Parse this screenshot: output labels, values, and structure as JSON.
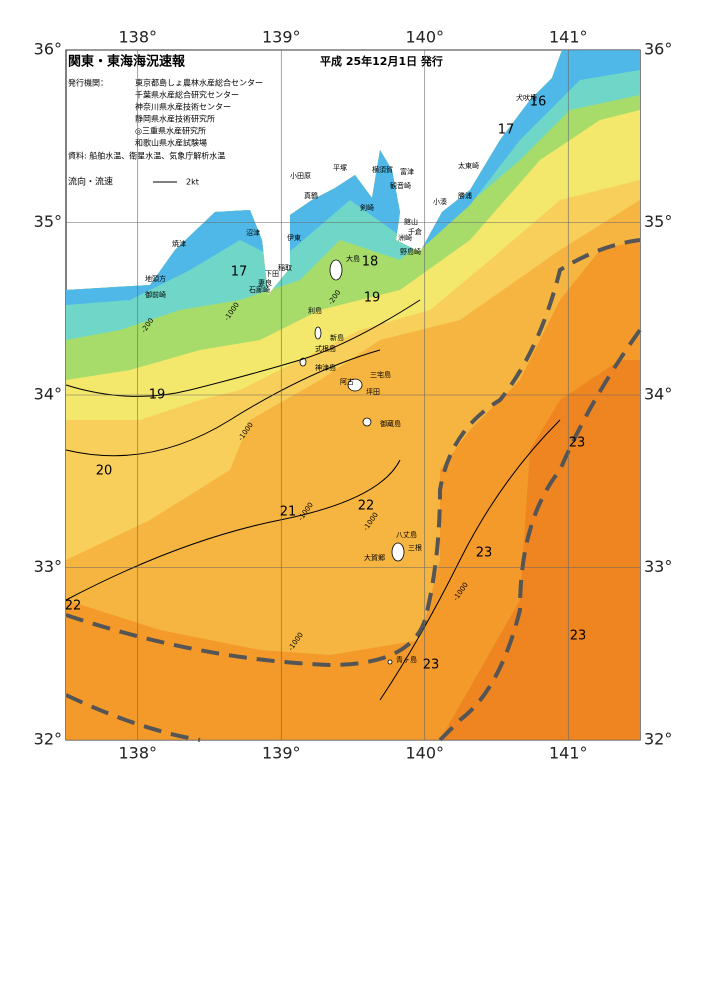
{
  "header": {
    "title": "関東・東海海況速報",
    "date": "平成 25年12月1日 発行",
    "issuer_label": "発行機関：",
    "issuers": [
      "東京都島しょ農林水産総合センター",
      "千葉県水産総合研究センター",
      "神奈川県水産技術センター",
      "静岡県水産技術研究所",
      "◎三重県水産研究所",
      "和歌山県水産試験場"
    ],
    "sources": "資料: 船舶水温、衛星水温、気象庁解析水温",
    "current_label": "流向・流速",
    "current_scale": "2kt"
  },
  "map": {
    "xlim": [
      137.5,
      141.5
    ],
    "ylim": [
      32,
      36
    ],
    "xticks": [
      {
        "value": 138,
        "label": "138°"
      },
      {
        "value": 139,
        "label": "139°"
      },
      {
        "value": 140,
        "label": "140°"
      },
      {
        "value": 141,
        "label": "141°"
      }
    ],
    "yticks": [
      {
        "value": 32,
        "label": "32°"
      },
      {
        "value": 33,
        "label": "33°"
      },
      {
        "value": 34,
        "label": "34°"
      },
      {
        "value": 35,
        "label": "35°"
      },
      {
        "value": 36,
        "label": "36°"
      }
    ],
    "isotherm_labels": [
      16,
      17,
      17,
      18,
      19,
      19,
      20,
      21,
      22,
      22,
      23,
      23,
      23,
      23
    ],
    "places": [
      "犬吠埼",
      "太東崎",
      "勝浦",
      "小湊",
      "洲崎",
      "野島崎",
      "千倉",
      "館山",
      "富津",
      "観音崎",
      "横須賀",
      "剣崎",
      "平塚",
      "小田原",
      "真鶴",
      "伊東",
      "稲取",
      "下田",
      "石廊崎",
      "妻良",
      "沼津",
      "焼津",
      "地頭方",
      "御前崎",
      "大島",
      "利島",
      "新島",
      "式根島",
      "神津島",
      "三宅島",
      "阿古",
      "坪田",
      "御蔵島",
      "八丈島",
      "三根",
      "大賀郷",
      "青ヶ島"
    ],
    "depth_labels": [
      "-200",
      "-200",
      "-1000",
      "-1000",
      "-1000",
      "-1000",
      "-1000",
      "-1000"
    ]
  }
}
